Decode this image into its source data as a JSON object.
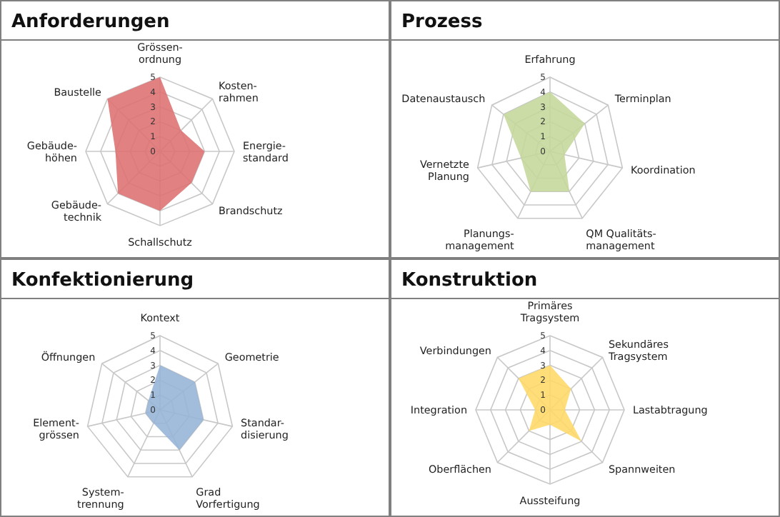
{
  "chart_data": [
    {
      "type": "radar",
      "title": "Anforderungen",
      "categories": [
        "Grössen-\nordnung",
        "Kosten-\nrahmen",
        "Energie-\nstandard",
        "Brandschutz",
        "Schallschutz",
        "Gebäude-\ntechnik",
        "Gebäude-\nhöhen",
        "Baustelle"
      ],
      "ylim": [
        0,
        5
      ],
      "yticks": [
        0,
        1,
        2,
        3,
        4,
        5
      ],
      "grid": true,
      "series": [
        {
          "color": "#dd6f6f",
          "values": [
            5,
            2,
            3,
            3,
            4,
            4,
            3,
            5
          ]
        }
      ]
    },
    {
      "type": "radar",
      "title": "Prozess",
      "categories": [
        "Erfahrung",
        "Terminplan",
        "Koordination",
        "QM Qualitäts-\nmanagement",
        "Planungs-\nmanagement",
        "Vernetzte\nPlanung",
        "Datenaustausch"
      ],
      "ylim": [
        0,
        5
      ],
      "yticks": [
        0,
        1,
        2,
        3,
        4,
        5
      ],
      "grid": true,
      "series": [
        {
          "color": "#c4d79b",
          "values": [
            4,
            3,
            1,
            3,
            3,
            2,
            4
          ]
        }
      ]
    },
    {
      "type": "radar",
      "title": "Konfektionierung",
      "categories": [
        "Kontext",
        "Geometrie",
        "Standar-\ndisierung",
        "Grad\nVorfertigung",
        "System-\ntrennung",
        "Element-\ngrössen",
        "Öffnungen"
      ],
      "ylim": [
        0,
        5
      ],
      "yticks": [
        0,
        1,
        2,
        3,
        4,
        5
      ],
      "grid": true,
      "series": [
        {
          "color": "#95b3d7",
          "values": [
            3,
            3,
            3,
            3,
            1,
            1,
            1
          ]
        }
      ]
    },
    {
      "type": "radar",
      "title": "Konstruktion",
      "categories": [
        "Primäres\nTragsystem",
        "Sekundäres\nTragsystem",
        "Lastabtragung",
        "Spannweiten",
        "Aussteifung",
        "Oberflächen",
        "Integration",
        "Verbindungen"
      ],
      "ylim": [
        0,
        5
      ],
      "yticks": [
        0,
        1,
        2,
        3,
        4,
        5
      ],
      "grid": true,
      "series": [
        {
          "color": "#ffd966",
          "values": [
            3,
            2,
            1,
            3,
            1,
            2,
            1,
            3
          ]
        }
      ]
    }
  ]
}
